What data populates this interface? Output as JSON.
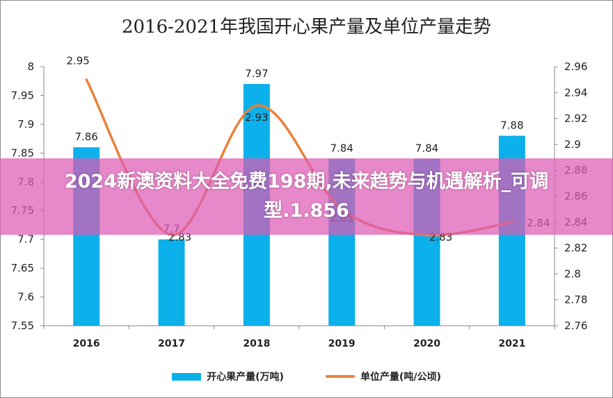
{
  "chart_data": {
    "type": "bar",
    "title": "2016-2021年我国开心果产量及单位产量走势",
    "categories": [
      "2016",
      "2017",
      "2018",
      "2019",
      "2020",
      "2021"
    ],
    "series": [
      {
        "name": "开心果产量(万吨)",
        "type": "bar",
        "axis": "left",
        "color": "#0cb0ea",
        "values": [
          7.86,
          7.7,
          7.97,
          7.84,
          7.84,
          7.88
        ],
        "labels": [
          "7.86",
          "7.7",
          "7.97",
          "7.84",
          "7.84",
          "7.88"
        ]
      },
      {
        "name": "单位产量(吨/公顷)",
        "type": "line",
        "axis": "right",
        "color": "#e8823a",
        "values": [
          2.95,
          2.83,
          2.93,
          2.85,
          2.83,
          2.84
        ],
        "labels": [
          "2.95",
          "2.83",
          "2.93",
          "2.85",
          "2.83",
          "2.84"
        ]
      }
    ],
    "left_axis": {
      "ylim": [
        7.55,
        8
      ],
      "ticks": [
        "7.55",
        "7.6",
        "7.65",
        "7.7",
        "7.75",
        "7.8",
        "7.85",
        "7.9",
        "7.95",
        "8"
      ]
    },
    "right_axis": {
      "ylim": [
        2.76,
        2.96
      ],
      "ticks": [
        "2.76",
        "2.78",
        "2.8",
        "2.82",
        "2.84",
        "2.86",
        "2.88",
        "2.9",
        "2.92",
        "2.94",
        "2.96"
      ]
    },
    "legend_position": "bottom",
    "grid": false
  },
  "watermark": {
    "text": "2024新澳资料大全免费198期,未来趋势与机遇解析_可调型.1.856",
    "color": "#dc5ab4"
  }
}
